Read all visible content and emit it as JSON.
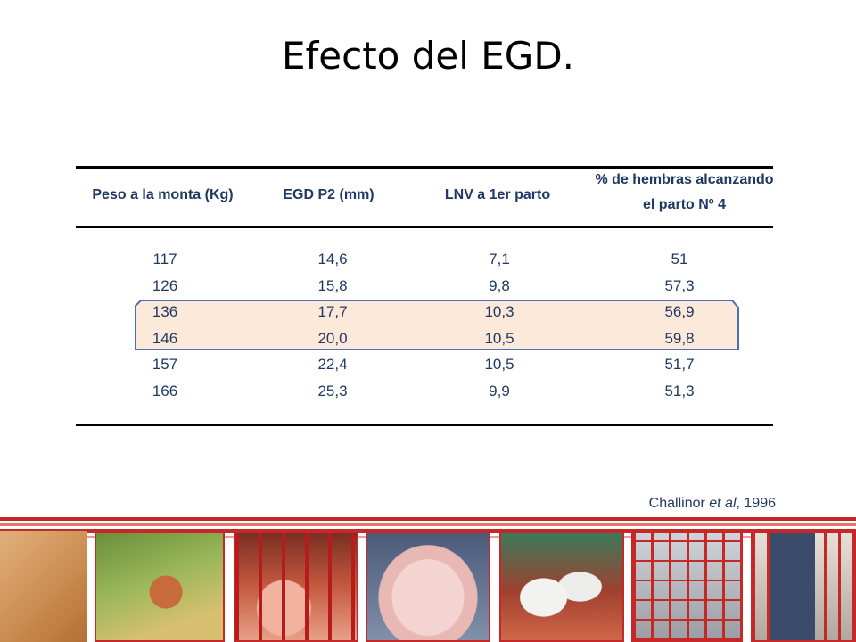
{
  "title": "Efecto del EGD.",
  "table": {
    "headers": {
      "col1": "Peso a la monta (Kg)",
      "col2": "EGD P2 (mm)",
      "col3": "LNV a 1er parto",
      "col4_line1": "% de hembras alcanzando",
      "col4_line2": "el parto Nº 4"
    },
    "rows": [
      {
        "peso": "117",
        "egd": "14,6",
        "lnv": "7,1",
        "pct": "51"
      },
      {
        "peso": "126",
        "egd": "15,8",
        "lnv": "9,8",
        "pct": "57,3"
      },
      {
        "peso": "136",
        "egd": "17,7",
        "lnv": "10,3",
        "pct": "56,9"
      },
      {
        "peso": "146",
        "egd": "20,0",
        "lnv": "10,5",
        "pct": "59,8"
      },
      {
        "peso": "157",
        "egd": "22,4",
        "lnv": "10,5",
        "pct": "51,7"
      },
      {
        "peso": "166",
        "egd": "25,3",
        "lnv": "9,9",
        "pct": "51,3"
      }
    ],
    "highlighted_rows": [
      "136",
      "146"
    ]
  },
  "citation": {
    "author": "Challinor ",
    "etal": "et al",
    "year": ", 1996"
  },
  "colors": {
    "text": "#1f3864",
    "highlight_fill": "#fde9d9",
    "highlight_border": "#4a6fb5",
    "stripe_red": "#c62828"
  },
  "photos": [
    "piglets-feeder-photo",
    "sows-pen-photo",
    "piglet-face-photo",
    "white-pigs-photo",
    "farrowing-crates-photo",
    "feeder-bin-photo"
  ]
}
